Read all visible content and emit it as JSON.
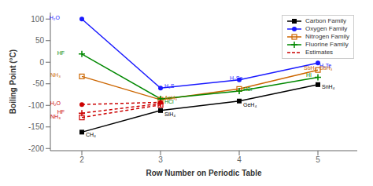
{
  "chart_data": {
    "type": "line",
    "xlabel": "Row Number on Periodic Table",
    "ylabel": "Boiling Point (°C)",
    "xlim": [
      1.6,
      5.5
    ],
    "ylim": [
      -205,
      115
    ],
    "xticks": [
      2,
      3,
      4,
      5
    ],
    "yticks": [
      -200,
      -150,
      -100,
      -50,
      0,
      50,
      100
    ],
    "grid": false,
    "legend": "upper right",
    "series": [
      {
        "name": "Carbon Family",
        "color": "#000000",
        "marker": "square",
        "line_style": "solid",
        "x": [
          2,
          3,
          4,
          5
        ],
        "values": [
          -162,
          -112,
          -90,
          -52
        ]
      },
      {
        "name": "Oxygen Family",
        "color": "#1a1aff",
        "marker": "circle",
        "line_style": "solid",
        "x": [
          2,
          3,
          4,
          5
        ],
        "values": [
          100,
          -60,
          -41,
          -2
        ]
      },
      {
        "name": "Nitrogen Family",
        "color": "#cc6600",
        "marker": "open_square",
        "line_style": "solid",
        "x": [
          2,
          3,
          4,
          5
        ],
        "values": [
          -33,
          -87,
          -62,
          -18
        ]
      },
      {
        "name": "Fluorine Family",
        "color": "#008800",
        "marker": "plus",
        "line_style": "solid",
        "x": [
          2,
          3,
          4,
          5
        ],
        "values": [
          19,
          -85,
          -67,
          -35
        ]
      },
      {
        "name": "Estimates",
        "color": "#cc0000",
        "marker": "circle",
        "line_style": "dashed",
        "x": [
          2,
          3
        ],
        "values": [
          -98,
          -93
        ]
      },
      {
        "name": "Estimates",
        "color": "#cc0000",
        "marker": "plus",
        "line_style": "dashed",
        "x": [
          2,
          3
        ],
        "values": [
          -118,
          -96
        ]
      },
      {
        "name": "Estimates",
        "color": "#cc0000",
        "marker": "open_square",
        "line_style": "dashed",
        "x": [
          2,
          3
        ],
        "values": [
          -128,
          -99
        ]
      }
    ],
    "annotations": [
      {
        "text": "CH₄",
        "x": 2.05,
        "y": -168,
        "color": "#000000"
      },
      {
        "text": "SiH₄",
        "x": 3.05,
        "y": -120,
        "color": "#000000"
      },
      {
        "text": "GeH₄",
        "x": 4.05,
        "y": -99,
        "color": "#000000"
      },
      {
        "text": "SnH₄",
        "x": 5.05,
        "y": -57,
        "color": "#000000"
      },
      {
        "text": "H₂O",
        "x": 1.72,
        "y": 103,
        "color": "#1a1aff"
      },
      {
        "text": "H₂S",
        "x": 3.05,
        "y": -55,
        "color": "#1a1aff"
      },
      {
        "text": "H₂Se",
        "x": 3.88,
        "y": -36,
        "color": "#1a1aff"
      },
      {
        "text": "H₂Te",
        "x": 5.02,
        "y": -7,
        "color": "#1a1aff"
      },
      {
        "text": "NH₃",
        "x": 1.73,
        "y": -30,
        "color": "#cc6600"
      },
      {
        "text": "AsH₃",
        "x": 3.05,
        "y": -82,
        "color": "#cc6600"
      },
      {
        "text": "SbH₃",
        "x": 4.82,
        "y": -13,
        "color": "#cc6600"
      },
      {
        "text": "SbH₃",
        "x": 5.02,
        "y": -14,
        "color": "#cc6600"
      },
      {
        "text": "HF",
        "x": 1.78,
        "y": 22,
        "color": "#008800"
      },
      {
        "text": "HCl",
        "x": 3.05,
        "y": -91,
        "color": "#008800"
      },
      {
        "text": "HBr",
        "x": 4.05,
        "y": -63,
        "color": "#008800"
      },
      {
        "text": "HI",
        "x": 4.85,
        "y": -30,
        "color": "#008800"
      },
      {
        "text": "H₂O",
        "x": 1.73,
        "y": -95,
        "color": "#cc0000"
      },
      {
        "text": "HF",
        "x": 1.78,
        "y": -115,
        "color": "#cc0000"
      },
      {
        "text": "NH₃",
        "x": 1.73,
        "y": -125,
        "color": "#cc0000"
      }
    ]
  }
}
